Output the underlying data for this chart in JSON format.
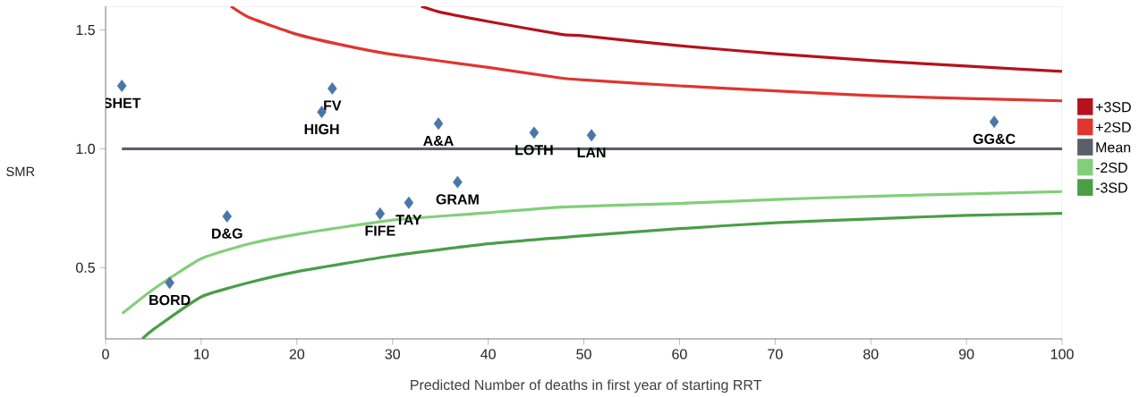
{
  "chart_data": {
    "type": "line",
    "xlabel": "Predicted Number of deaths in first year of starting RRT",
    "ylabel": "SMR",
    "xlim": [
      0,
      100
    ],
    "ylim": [
      0.2,
      1.6
    ],
    "xticks": [
      0,
      10,
      20,
      30,
      40,
      50,
      60,
      70,
      80,
      90,
      100
    ],
    "yticks": [
      {
        "value": 0.5,
        "label": "0.5"
      },
      {
        "value": 1.0,
        "label": "1.0"
      },
      {
        "value": 1.5,
        "label": "1.5"
      }
    ],
    "legend": "right",
    "grid": false,
    "series": [
      {
        "name": "+3SD",
        "color": "#b5121b",
        "x": [
          33.0,
          35,
          40,
          47.6,
          50,
          60,
          70,
          80,
          90,
          100
        ],
        "values": [
          1.6,
          1.575,
          1.536,
          1.482,
          1.475,
          1.434,
          1.4,
          1.372,
          1.348,
          1.326
        ]
      },
      {
        "name": "+2SD",
        "color": "#e03530",
        "x": [
          13.1,
          15,
          20,
          25,
          30,
          40,
          47.6,
          50,
          60,
          70,
          80,
          90,
          100
        ],
        "values": [
          1.6,
          1.553,
          1.482,
          1.435,
          1.397,
          1.343,
          1.298,
          1.29,
          1.265,
          1.244,
          1.224,
          1.212,
          1.202
        ]
      },
      {
        "name": "Mean",
        "color": "#5a5f6a",
        "x": [
          1.7,
          100
        ],
        "values": [
          1.0,
          1.0
        ]
      },
      {
        "name": "-2SD",
        "color": "#82cf7a",
        "x": [
          1.75,
          5,
          10,
          15,
          20,
          30,
          40,
          47.6,
          60,
          70,
          80,
          90,
          100
        ],
        "values": [
          0.307,
          0.409,
          0.538,
          0.6,
          0.64,
          0.7,
          0.731,
          0.755,
          0.77,
          0.787,
          0.8,
          0.81,
          0.82
        ]
      },
      {
        "name": "-3SD",
        "color": "#4a9e48",
        "x": [
          3.85,
          5,
          10,
          15,
          20,
          30,
          40,
          50,
          60,
          70,
          80,
          90,
          100
        ],
        "values": [
          0.2,
          0.24,
          0.377,
          0.437,
          0.483,
          0.55,
          0.6,
          0.634,
          0.664,
          0.689,
          0.705,
          0.72,
          0.728
        ]
      },
      {
        "type": "scatter",
        "marker": "diamond",
        "color": "#4a76a8",
        "x": [
          1.7,
          22.6,
          23.7,
          34.8,
          44.8,
          50.8,
          92.9,
          36.8,
          31.7,
          28.7,
          12.7,
          6.7
        ],
        "values": [
          1.265,
          1.155,
          1.254,
          1.106,
          1.068,
          1.057,
          1.114,
          0.86,
          0.773,
          0.727,
          0.716,
          0.436
        ]
      }
    ],
    "annotations": [
      {
        "text": "SHET",
        "x": 1.7,
        "y": 1.265
      },
      {
        "text": "HIGH",
        "x": 22.6,
        "y": 1.155
      },
      {
        "text": "FV",
        "x": 23.7,
        "y": 1.254
      },
      {
        "text": "A&A",
        "x": 34.8,
        "y": 1.106
      },
      {
        "text": "LOTH",
        "x": 44.8,
        "y": 1.068
      },
      {
        "text": "LAN",
        "x": 50.8,
        "y": 1.057
      },
      {
        "text": "GG&C",
        "x": 92.9,
        "y": 1.114
      },
      {
        "text": "GRAM",
        "x": 36.8,
        "y": 0.86
      },
      {
        "text": "TAY",
        "x": 31.7,
        "y": 0.773
      },
      {
        "text": "FIFE",
        "x": 28.7,
        "y": 0.727
      },
      {
        "text": "D&G",
        "x": 12.7,
        "y": 0.716
      },
      {
        "text": "BORD",
        "x": 6.7,
        "y": 0.436
      }
    ]
  }
}
